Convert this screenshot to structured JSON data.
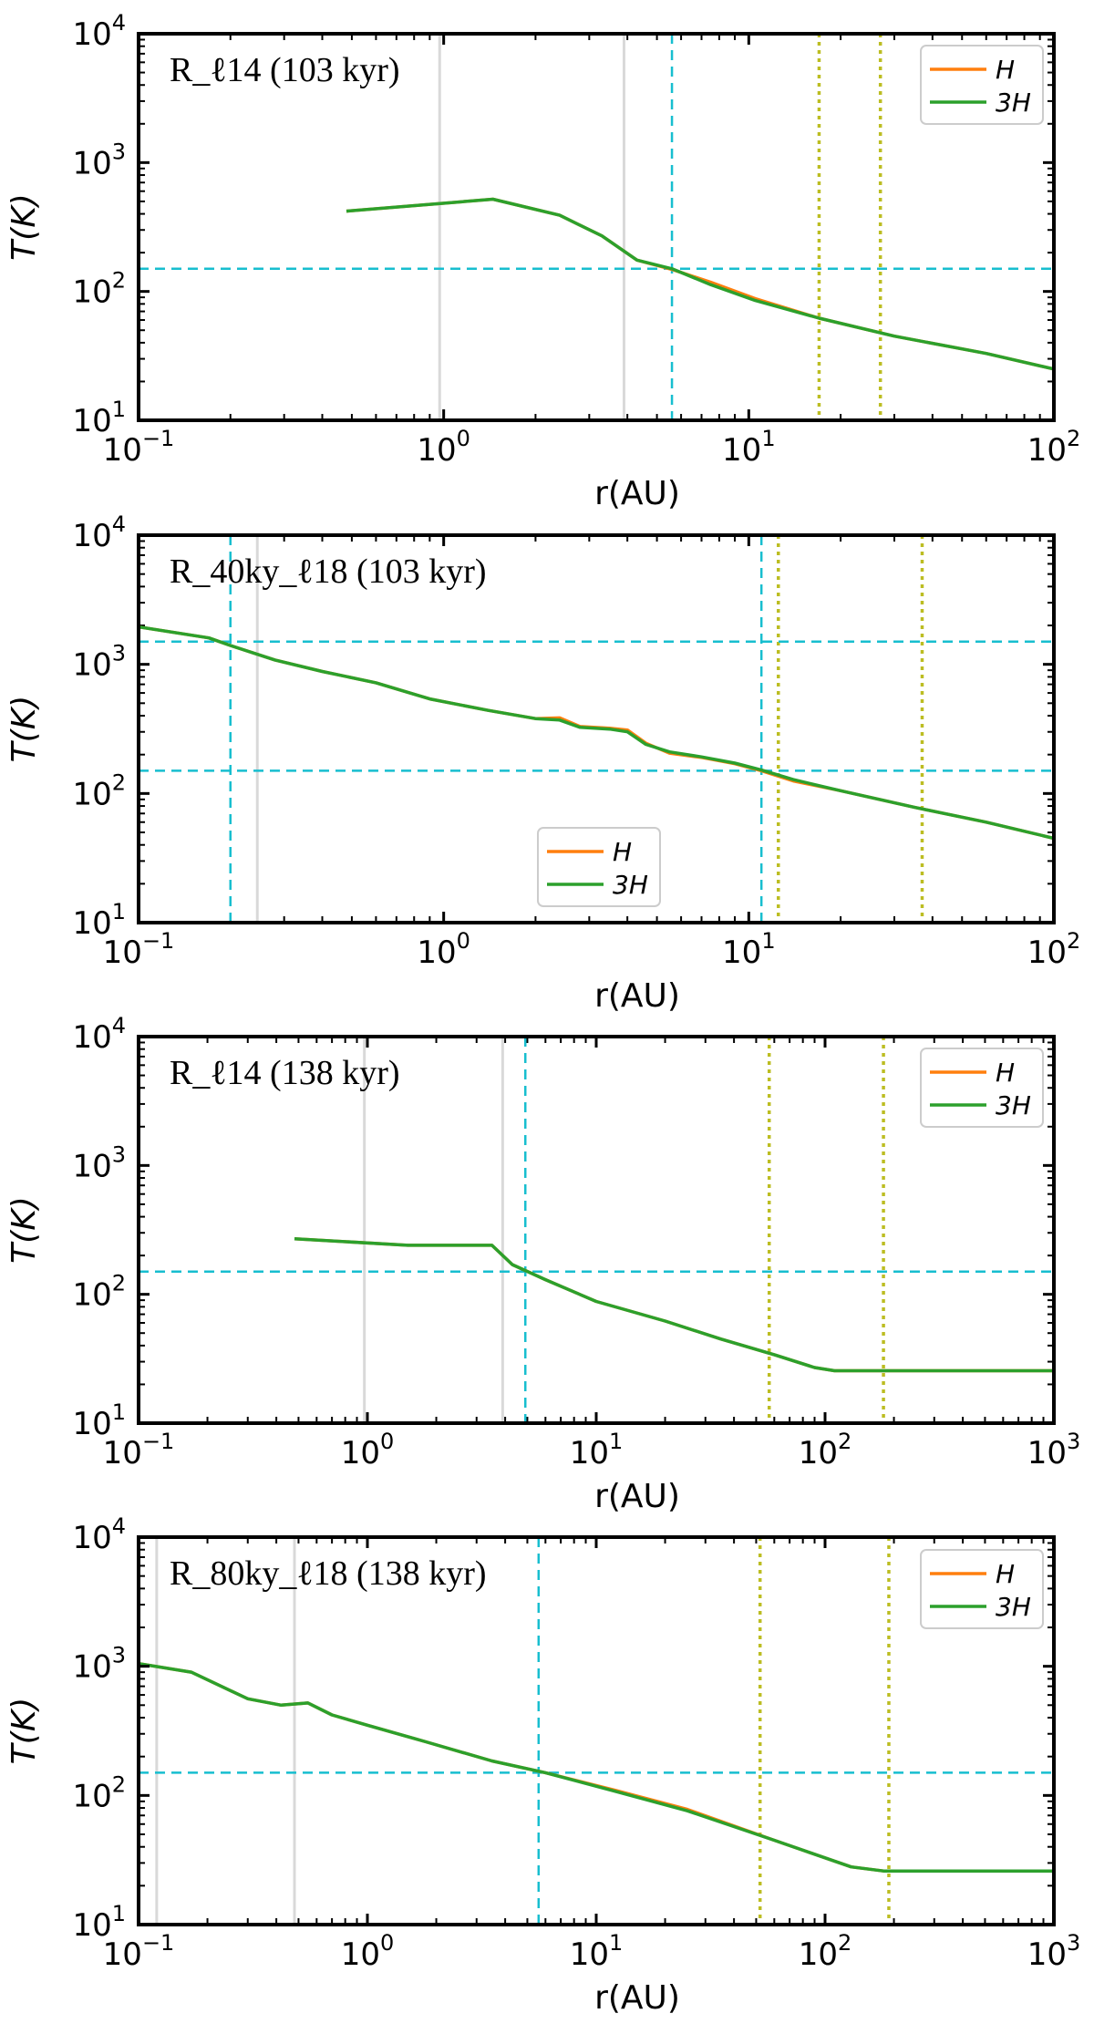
{
  "colors": {
    "H": "#ff7f0e",
    "3H": "#2ca02c",
    "cyan": "#17becf",
    "olive": "#bcbd22",
    "gray": "#d9d9d9"
  },
  "chart_data": [
    {
      "type": "line",
      "title": "R_ℓ 14 (103 kyr)",
      "title_text": "R_ℓ14 (103 kyr)",
      "xlabel": "r(AU)",
      "ylabel": "T(K)",
      "xscale": "log",
      "yscale": "log",
      "xlim": [
        0.1,
        100
      ],
      "ylim": [
        10,
        10000
      ],
      "xticks": [
        {
          "base": "10",
          "exp": "−1",
          "value": 0.1
        },
        {
          "base": "10",
          "exp": "0",
          "value": 1
        },
        {
          "base": "10",
          "exp": "1",
          "value": 10
        },
        {
          "base": "10",
          "exp": "2",
          "value": 100
        }
      ],
      "yticks": [
        {
          "base": "10",
          "exp": "1",
          "value": 10
        },
        {
          "base": "10",
          "exp": "2",
          "value": 100
        },
        {
          "base": "10",
          "exp": "3",
          "value": 1000
        },
        {
          "base": "10",
          "exp": "4",
          "value": 10000
        }
      ],
      "legend": {
        "position": "top-right",
        "entries": [
          "H",
          "3H"
        ]
      },
      "series": [
        {
          "name": "H",
          "x": [
            0.48,
            1.45,
            2.4,
            3.3,
            4.3,
            5.6,
            7.5,
            10.5,
            17,
            30,
            60,
            100
          ],
          "y": [
            420,
            520,
            390,
            270,
            175,
            148,
            118,
            88,
            62,
            45,
            33,
            25
          ]
        },
        {
          "name": "3H",
          "x": [
            0.48,
            1.45,
            2.4,
            3.3,
            4.3,
            5.6,
            7.5,
            10.5,
            17,
            30,
            60,
            100
          ],
          "y": [
            420,
            520,
            390,
            270,
            175,
            150,
            113,
            85,
            62,
            45,
            33,
            25
          ]
        }
      ],
      "vlines": [
        {
          "x": 0.97,
          "style": "gray"
        },
        {
          "x": 3.9,
          "style": "gray"
        },
        {
          "x": 5.6,
          "style": "cyan"
        },
        {
          "x": 17,
          "style": "olive"
        },
        {
          "x": 27,
          "style": "olive"
        }
      ],
      "hlines": [
        {
          "y": 150,
          "style": "cyan"
        }
      ]
    },
    {
      "type": "line",
      "title_text": "R_40ky_ℓ18 (103 kyr)",
      "xlabel": "r(AU)",
      "ylabel": "T(K)",
      "xscale": "log",
      "yscale": "log",
      "xlim": [
        0.1,
        100
      ],
      "ylim": [
        10,
        10000
      ],
      "xticks": [
        {
          "base": "10",
          "exp": "−1",
          "value": 0.1
        },
        {
          "base": "10",
          "exp": "0",
          "value": 1
        },
        {
          "base": "10",
          "exp": "1",
          "value": 10
        },
        {
          "base": "10",
          "exp": "2",
          "value": 100
        }
      ],
      "yticks": [
        {
          "base": "10",
          "exp": "1",
          "value": 10
        },
        {
          "base": "10",
          "exp": "2",
          "value": 100
        },
        {
          "base": "10",
          "exp": "3",
          "value": 1000
        },
        {
          "base": "10",
          "exp": "4",
          "value": 10000
        }
      ],
      "legend": {
        "position": "lower-center",
        "entries": [
          "H",
          "3H"
        ]
      },
      "series": [
        {
          "name": "H",
          "x": [
            0.1,
            0.17,
            0.2,
            0.28,
            0.4,
            0.6,
            0.9,
            1.4,
            2.0,
            2.4,
            2.8,
            3.5,
            4.0,
            4.6,
            5.5,
            7.0,
            9.0,
            11,
            14,
            20,
            35,
            60,
            100
          ],
          "y": [
            1950,
            1600,
            1400,
            1080,
            880,
            720,
            540,
            440,
            380,
            385,
            330,
            320,
            310,
            245,
            205,
            190,
            170,
            150,
            125,
            105,
            78,
            60,
            45
          ]
        },
        {
          "name": "3H",
          "x": [
            0.1,
            0.17,
            0.2,
            0.28,
            0.4,
            0.6,
            0.9,
            1.4,
            2.0,
            2.4,
            2.8,
            3.5,
            4.0,
            4.6,
            5.5,
            7.0,
            9.0,
            11,
            14,
            20,
            35,
            60,
            100
          ],
          "y": [
            1950,
            1600,
            1400,
            1080,
            880,
            720,
            540,
            440,
            380,
            370,
            325,
            315,
            300,
            240,
            210,
            192,
            172,
            152,
            128,
            105,
            78,
            60,
            45
          ]
        }
      ],
      "vlines": [
        {
          "x": 0.2,
          "style": "cyan"
        },
        {
          "x": 0.245,
          "style": "gray"
        },
        {
          "x": 11,
          "style": "cyan"
        },
        {
          "x": 12.5,
          "style": "olive"
        },
        {
          "x": 37,
          "style": "olive"
        }
      ],
      "hlines": [
        {
          "y": 1500,
          "style": "cyan"
        },
        {
          "y": 150,
          "style": "cyan"
        }
      ]
    },
    {
      "type": "line",
      "title_text": "R_ℓ14 (138 kyr)",
      "xlabel": "r(AU)",
      "ylabel": "T(K)",
      "xscale": "log",
      "yscale": "log",
      "xlim": [
        0.1,
        1000
      ],
      "ylim": [
        10,
        10000
      ],
      "xticks": [
        {
          "base": "10",
          "exp": "−1",
          "value": 0.1
        },
        {
          "base": "10",
          "exp": "0",
          "value": 1
        },
        {
          "base": "10",
          "exp": "1",
          "value": 10
        },
        {
          "base": "10",
          "exp": "2",
          "value": 100
        },
        {
          "base": "10",
          "exp": "3",
          "value": 1000
        }
      ],
      "yticks": [
        {
          "base": "10",
          "exp": "1",
          "value": 10
        },
        {
          "base": "10",
          "exp": "2",
          "value": 100
        },
        {
          "base": "10",
          "exp": "3",
          "value": 1000
        },
        {
          "base": "10",
          "exp": "4",
          "value": 10000
        }
      ],
      "legend": {
        "position": "top-right",
        "entries": [
          "H",
          "3H"
        ]
      },
      "series": [
        {
          "name": "H",
          "x": [
            0.48,
            1.5,
            3.5,
            4.3,
            6.0,
            10,
            20,
            35,
            60,
            90,
            110,
            200,
            500,
            1000
          ],
          "y": [
            270,
            240,
            240,
            170,
            130,
            88,
            62,
            45,
            34,
            27,
            25.5,
            25.5,
            25.5,
            25.5
          ]
        },
        {
          "name": "3H",
          "x": [
            0.48,
            1.5,
            3.5,
            4.3,
            6.0,
            10,
            20,
            35,
            60,
            90,
            110,
            200,
            500,
            1000
          ],
          "y": [
            270,
            240,
            240,
            170,
            130,
            88,
            62,
            45,
            34,
            27,
            25.5,
            25.5,
            25.5,
            25.5
          ]
        }
      ],
      "vlines": [
        {
          "x": 0.97,
          "style": "gray"
        },
        {
          "x": 3.9,
          "style": "gray"
        },
        {
          "x": 4.9,
          "style": "cyan"
        },
        {
          "x": 57,
          "style": "olive"
        },
        {
          "x": 180,
          "style": "olive"
        }
      ],
      "hlines": [
        {
          "y": 150,
          "style": "cyan"
        }
      ]
    },
    {
      "type": "line",
      "title_text": "R_80ky_ℓ18 (138 kyr)",
      "xlabel": "r(AU)",
      "ylabel": "T(K)",
      "xscale": "log",
      "yscale": "log",
      "xlim": [
        0.1,
        1000
      ],
      "ylim": [
        10,
        10000
      ],
      "xticks": [
        {
          "base": "10",
          "exp": "−1",
          "value": 0.1
        },
        {
          "base": "10",
          "exp": "0",
          "value": 1
        },
        {
          "base": "10",
          "exp": "1",
          "value": 10
        },
        {
          "base": "10",
          "exp": "2",
          "value": 100
        },
        {
          "base": "10",
          "exp": "3",
          "value": 1000
        }
      ],
      "yticks": [
        {
          "base": "10",
          "exp": "1",
          "value": 10
        },
        {
          "base": "10",
          "exp": "2",
          "value": 100
        },
        {
          "base": "10",
          "exp": "3",
          "value": 1000
        },
        {
          "base": "10",
          "exp": "4",
          "value": 10000
        }
      ],
      "legend": {
        "position": "top-right",
        "entries": [
          "H",
          "3H"
        ]
      },
      "series": [
        {
          "name": "H",
          "x": [
            0.1,
            0.17,
            0.3,
            0.42,
            0.55,
            0.7,
            1.0,
            1.8,
            3.5,
            6.0,
            12,
            25,
            60,
            130,
            180,
            400,
            1000
          ],
          "y": [
            1050,
            900,
            560,
            500,
            520,
            420,
            350,
            260,
            185,
            150,
            110,
            78,
            45,
            28,
            26,
            26,
            26
          ]
        },
        {
          "name": "3H",
          "x": [
            0.1,
            0.17,
            0.3,
            0.42,
            0.55,
            0.7,
            1.0,
            1.8,
            3.5,
            6.0,
            12,
            25,
            60,
            130,
            180,
            400,
            1000
          ],
          "y": [
            1050,
            900,
            560,
            500,
            520,
            420,
            350,
            260,
            185,
            150,
            108,
            76,
            45,
            28,
            26,
            26,
            26
          ]
        }
      ],
      "vlines": [
        {
          "x": 0.12,
          "style": "gray"
        },
        {
          "x": 0.48,
          "style": "gray"
        },
        {
          "x": 5.6,
          "style": "cyan"
        },
        {
          "x": 52,
          "style": "olive"
        },
        {
          "x": 190,
          "style": "olive"
        }
      ],
      "hlines": [
        {
          "y": 150,
          "style": "cyan"
        }
      ]
    }
  ]
}
